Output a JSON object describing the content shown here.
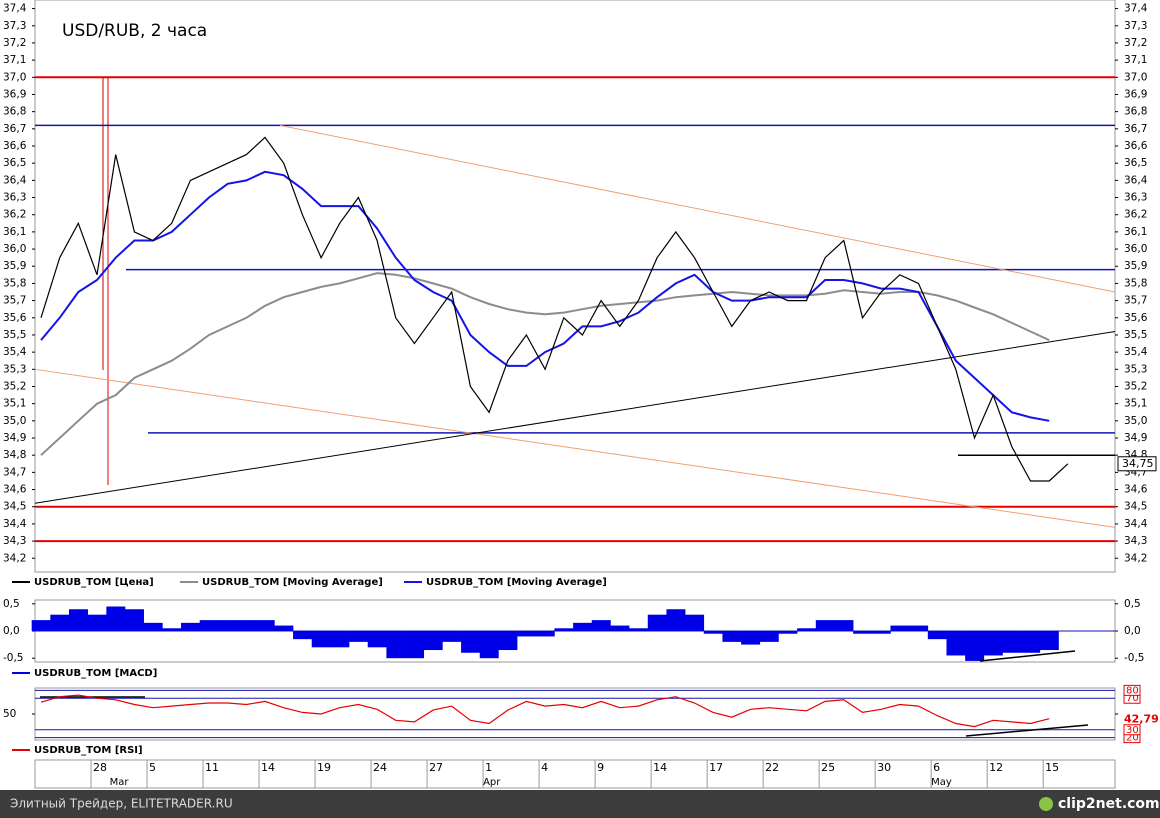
{
  "chart_data": [
    {
      "type": "line",
      "title": "USD/RUB, 2 часа",
      "categories": [
        null,
        null,
        null,
        "28",
        null,
        null,
        "5",
        null,
        null,
        "11",
        null,
        null,
        "14",
        null,
        null,
        "19",
        null,
        null,
        "24",
        null,
        null,
        "27",
        null,
        null,
        "1",
        null,
        null,
        "4",
        null,
        null,
        "9",
        null,
        null,
        "14",
        null,
        null,
        "17",
        null,
        null,
        "22",
        null,
        null,
        "25",
        null,
        null,
        "30",
        null,
        null,
        "6",
        null,
        null,
        "12",
        null,
        null,
        "15",
        null
      ],
      "month_labels": [
        null,
        null,
        null,
        null,
        "Mar",
        null,
        null,
        null,
        null,
        null,
        null,
        null,
        null,
        null,
        null,
        null,
        null,
        null,
        null,
        null,
        null,
        null,
        null,
        null,
        "Apr",
        null,
        null,
        null,
        null,
        null,
        null,
        null,
        null,
        null,
        null,
        null,
        null,
        null,
        null,
        null,
        null,
        null,
        null,
        null,
        null,
        null,
        null,
        null,
        "May",
        null,
        null,
        null,
        null,
        null,
        null,
        null
      ],
      "series": [
        {
          "name": "USDRUB_TOM [Цена]",
          "color": "#000000",
          "values": [
            35.6,
            35.95,
            36.15,
            35.85,
            36.55,
            36.1,
            36.05,
            36.15,
            36.4,
            36.45,
            36.5,
            36.55,
            36.65,
            36.5,
            36.2,
            35.95,
            36.15,
            36.3,
            36.05,
            35.6,
            35.45,
            35.6,
            35.75,
            35.2,
            35.05,
            35.35,
            35.5,
            35.3,
            35.6,
            35.5,
            35.7,
            35.55,
            35.7,
            35.95,
            36.1,
            35.95,
            35.75,
            35.55,
            35.7,
            35.75,
            35.7,
            35.7,
            35.95,
            36.05,
            35.6,
            35.75,
            35.85,
            35.8,
            35.55,
            35.3,
            34.9,
            35.15,
            34.85,
            34.65,
            34.65,
            34.75
          ]
        },
        {
          "name": "USDRUB_TOM [Moving Average]",
          "color": "#8c8c8c",
          "values": [
            34.8,
            34.9,
            35.0,
            35.1,
            35.15,
            35.25,
            35.3,
            35.35,
            35.42,
            35.5,
            35.55,
            35.6,
            35.67,
            35.72,
            35.75,
            35.78,
            35.8,
            35.83,
            35.86,
            35.85,
            35.83,
            35.8,
            35.77,
            35.72,
            35.68,
            35.65,
            35.63,
            35.62,
            35.63,
            35.65,
            35.67,
            35.68,
            35.69,
            35.7,
            35.72,
            35.73,
            35.74,
            35.75,
            35.74,
            35.73,
            35.73,
            35.73,
            35.74,
            35.76,
            35.75,
            35.74,
            35.75,
            35.75,
            35.73,
            35.7,
            35.66,
            35.62,
            35.57,
            35.52,
            35.47,
            null
          ]
        },
        {
          "name": "USDRUB_TOM [Moving Average]",
          "color": "#1414e6",
          "values": [
            35.47,
            35.6,
            35.75,
            35.82,
            35.95,
            36.05,
            36.05,
            36.1,
            36.2,
            36.3,
            36.38,
            36.4,
            36.45,
            36.43,
            36.35,
            36.25,
            36.25,
            36.25,
            36.12,
            35.95,
            35.82,
            35.75,
            35.7,
            35.5,
            35.4,
            35.32,
            35.32,
            35.4,
            35.45,
            35.55,
            35.55,
            35.58,
            35.63,
            35.72,
            35.8,
            35.85,
            35.75,
            35.7,
            35.7,
            35.72,
            35.72,
            35.72,
            35.82,
            35.82,
            35.8,
            35.77,
            35.77,
            35.75,
            35.55,
            35.35,
            35.25,
            35.15,
            35.05,
            35.02,
            35.0,
            null
          ]
        }
      ],
      "levels": [
        {
          "value": 37.0,
          "color": "#e60000"
        },
        {
          "value": 34.5,
          "color": "#e60000"
        },
        {
          "value": 34.3,
          "color": "#e60000"
        },
        {
          "value": 36.72,
          "color": "#1414b4"
        },
        {
          "value": 35.88,
          "color": "#1414b4"
        },
        {
          "value": 34.93,
          "color": "#1414b4"
        },
        {
          "value": 34.8,
          "color": "#000000"
        }
      ],
      "trendlines": [
        {
          "values": [
            36.72,
            35.75
          ],
          "color": "#f0a070"
        },
        {
          "values": [
            35.3,
            34.38
          ],
          "color": "#f0a070"
        },
        {
          "values": [
            34.52,
            35.52
          ],
          "color": "#000000"
        }
      ],
      "last_price": {
        "value": 34.75,
        "label": "34,75"
      },
      "ylim": [
        34.12,
        37.45
      ],
      "yticks": [
        {
          "value": 34.2,
          "label": "34,2"
        },
        {
          "value": 34.3,
          "label": "34,3"
        },
        {
          "value": 34.4,
          "label": "34,4"
        },
        {
          "value": 34.5,
          "label": "34,5"
        },
        {
          "value": 34.6,
          "label": "34,6"
        },
        {
          "value": 34.7,
          "label": "34,7"
        },
        {
          "value": 34.8,
          "label": "34,8"
        },
        {
          "value": 34.9,
          "label": "34,9"
        },
        {
          "value": 35.0,
          "label": "35,0"
        },
        {
          "value": 35.1,
          "label": "35,1"
        },
        {
          "value": 35.2,
          "label": "35,2"
        },
        {
          "value": 35.3,
          "label": "35,3"
        },
        {
          "value": 35.4,
          "label": "35,4"
        },
        {
          "value": 35.5,
          "label": "35,5"
        },
        {
          "value": 35.6,
          "label": "35,6"
        },
        {
          "value": 35.7,
          "label": "35,7"
        },
        {
          "value": 35.8,
          "label": "35,8"
        },
        {
          "value": 35.9,
          "label": "35,9"
        },
        {
          "value": 36.0,
          "label": "36,0"
        },
        {
          "value": 36.1,
          "label": "36,1"
        },
        {
          "value": 36.2,
          "label": "36,2"
        },
        {
          "value": 36.3,
          "label": "36,3"
        },
        {
          "value": 36.4,
          "label": "36,4"
        },
        {
          "value": 36.5,
          "label": "36,5"
        },
        {
          "value": 36.6,
          "label": "36,6"
        },
        {
          "value": 36.7,
          "label": "36,7"
        },
        {
          "value": 36.8,
          "label": "36,8"
        },
        {
          "value": 36.9,
          "label": "36,9"
        },
        {
          "value": 37.0,
          "label": "37,0"
        },
        {
          "value": 37.1,
          "label": "37,1"
        },
        {
          "value": 37.2,
          "label": "37,2"
        },
        {
          "value": 37.3,
          "label": "37,3"
        },
        {
          "value": 37.4,
          "label": "37,4"
        }
      ]
    },
    {
      "type": "bar",
      "series": [
        {
          "name": "USDRUB_TOM [MACD]",
          "color": "#0000e6",
          "values": [
            0.2,
            0.3,
            0.4,
            0.3,
            0.45,
            0.4,
            0.15,
            0.05,
            0.15,
            0.2,
            0.2,
            0.2,
            0.2,
            0.1,
            -0.15,
            -0.3,
            -0.3,
            -0.2,
            -0.3,
            -0.5,
            -0.5,
            -0.35,
            -0.2,
            -0.4,
            -0.5,
            -0.35,
            -0.1,
            -0.1,
            0.05,
            0.15,
            0.2,
            0.1,
            0.05,
            0.3,
            0.4,
            0.3,
            -0.05,
            -0.2,
            -0.25,
            -0.2,
            -0.05,
            0.05,
            0.2,
            0.2,
            -0.05,
            -0.05,
            0.1,
            0.1,
            -0.15,
            -0.45,
            -0.55,
            -0.45,
            -0.4,
            -0.4,
            -0.35,
            null
          ]
        }
      ],
      "ylim": [
        -0.57,
        0.57
      ],
      "yticks": [
        {
          "value": -0.5,
          "label": "-0,5"
        },
        {
          "value": 0.0,
          "label": "0,0"
        },
        {
          "value": 0.5,
          "label": "0,5"
        }
      ]
    },
    {
      "type": "line",
      "series": [
        {
          "name": "USDRUB_TOM [RSI]",
          "color": "#e60000",
          "values": [
            65,
            72,
            74,
            70,
            68,
            62,
            58,
            60,
            62,
            64,
            64,
            62,
            66,
            58,
            52,
            50,
            58,
            62,
            56,
            42,
            40,
            55,
            60,
            42,
            38,
            55,
            66,
            60,
            62,
            58,
            66,
            58,
            60,
            68,
            72,
            64,
            52,
            46,
            56,
            58,
            56,
            54,
            66,
            68,
            52,
            56,
            62,
            60,
            48,
            38,
            34,
            42,
            40,
            38,
            44,
            null
          ]
        }
      ],
      "last_value": {
        "value": 42.79,
        "label": "42,79"
      },
      "ylim": [
        17,
        83
      ],
      "yticks": [
        50
      ],
      "levels": [
        20,
        30,
        70,
        80
      ]
    }
  ],
  "footer": {
    "left": "Элитный Трейдер, ELITETRADER.RU",
    "right": "clip2net.com"
  }
}
